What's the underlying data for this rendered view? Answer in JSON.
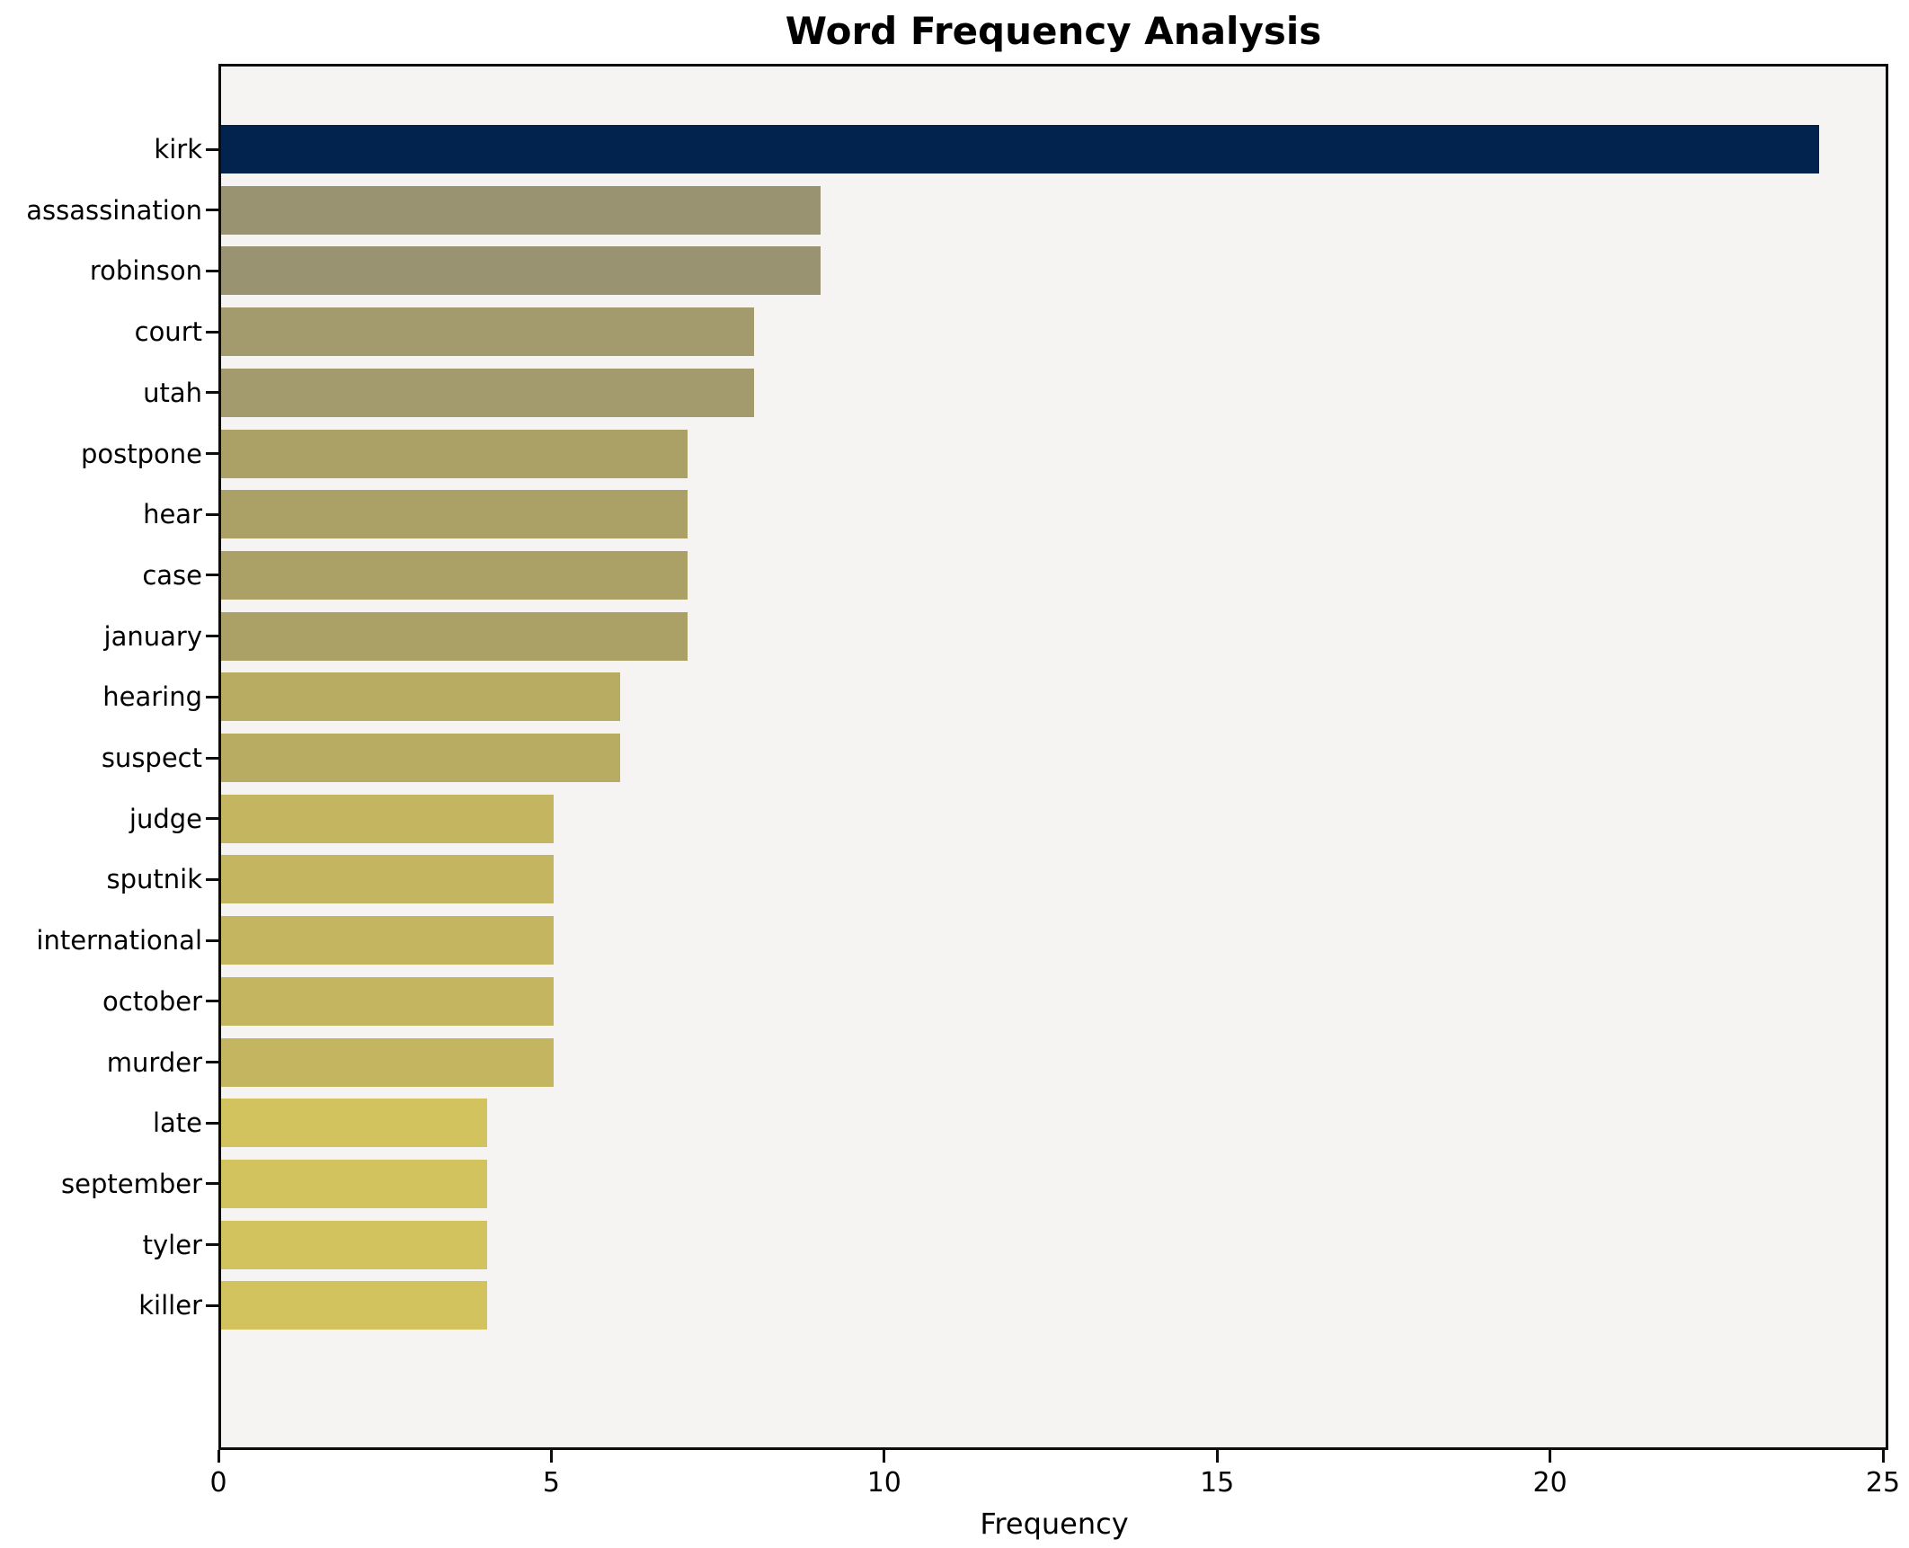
{
  "chart_data": {
    "type": "bar",
    "orientation": "horizontal",
    "title": "Word Frequency Analysis",
    "xlabel": "Frequency",
    "ylabel": "",
    "categories": [
      "kirk",
      "assassination",
      "robinson",
      "court",
      "utah",
      "postpone",
      "hear",
      "case",
      "january",
      "hearing",
      "suspect",
      "judge",
      "sputnik",
      "international",
      "october",
      "murder",
      "late",
      "september",
      "tyler",
      "killer"
    ],
    "values": [
      24,
      9,
      9,
      8,
      8,
      7,
      7,
      7,
      7,
      6,
      6,
      5,
      5,
      5,
      5,
      5,
      4,
      4,
      4,
      4
    ],
    "bar_colors": [
      "#02234e",
      "#9a9372",
      "#9a9372",
      "#a39a6e",
      "#a39a6e",
      "#aba167",
      "#aba167",
      "#aba167",
      "#aba167",
      "#b7ac62",
      "#b7ac62",
      "#c4b661",
      "#c4b661",
      "#c4b661",
      "#c4b661",
      "#c4b661",
      "#d2c35f",
      "#d2c35f",
      "#d2c35f",
      "#d2c35f"
    ],
    "xlim": [
      0,
      25
    ],
    "x_ticks": [
      0,
      5,
      10,
      15,
      20,
      25
    ],
    "grid": false,
    "legend": false,
    "plot_background": "#f5f4f2",
    "figure_background": "#ffffff",
    "axis_color": "#0d0d0d"
  }
}
